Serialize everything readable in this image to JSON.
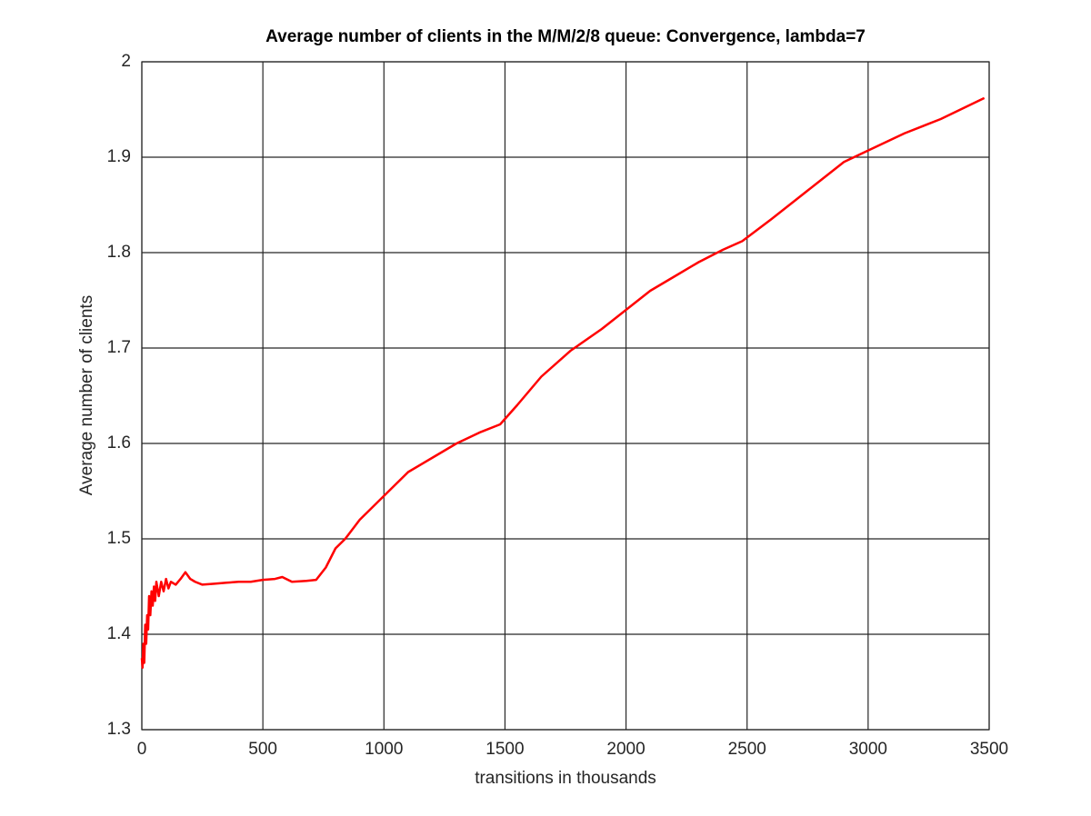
{
  "chart_data": {
    "type": "line",
    "title": "Average number of clients in the M/M/2/8 queue: Convergence, lambda=7",
    "xlabel": "transitions in thousands",
    "ylabel": "Average number of clients",
    "x": [
      0,
      3,
      6,
      10,
      14,
      18,
      22,
      26,
      30,
      35,
      40,
      45,
      50,
      55,
      60,
      70,
      80,
      90,
      100,
      110,
      120,
      140,
      160,
      180,
      200,
      220,
      250,
      300,
      350,
      400,
      450,
      500,
      550,
      580,
      620,
      680,
      720,
      760,
      800,
      840,
      900,
      1000,
      1100,
      1200,
      1300,
      1400,
      1480,
      1550,
      1650,
      1770,
      1900,
      2000,
      2100,
      2200,
      2300,
      2400,
      2480,
      2600,
      2700,
      2800,
      2900,
      3000,
      3150,
      3300,
      3480
    ],
    "series": [
      {
        "name": "Average number of clients",
        "color": "#ff0000",
        "values": [
          1.375,
          1.365,
          1.39,
          1.37,
          1.41,
          1.39,
          1.42,
          1.405,
          1.44,
          1.42,
          1.445,
          1.43,
          1.45,
          1.435,
          1.455,
          1.44,
          1.455,
          1.445,
          1.458,
          1.448,
          1.455,
          1.452,
          1.458,
          1.465,
          1.458,
          1.455,
          1.452,
          1.453,
          1.454,
          1.455,
          1.455,
          1.457,
          1.458,
          1.46,
          1.455,
          1.456,
          1.457,
          1.47,
          1.49,
          1.5,
          1.52,
          1.545,
          1.57,
          1.585,
          1.6,
          1.612,
          1.62,
          1.64,
          1.67,
          1.697,
          1.72,
          1.74,
          1.76,
          1.775,
          1.79,
          1.803,
          1.812,
          1.835,
          1.855,
          1.875,
          1.895,
          1.907,
          1.925,
          1.94,
          1.962
        ]
      }
    ],
    "xlim": [
      0,
      3500
    ],
    "xticks": [
      0,
      500,
      1000,
      1500,
      2000,
      2500,
      3000,
      3500
    ],
    "ylim": [
      1.3,
      2
    ],
    "yticks": [
      1.3,
      1.4,
      1.5,
      1.6,
      1.7,
      1.8,
      1.9,
      2
    ],
    "grid": true
  }
}
